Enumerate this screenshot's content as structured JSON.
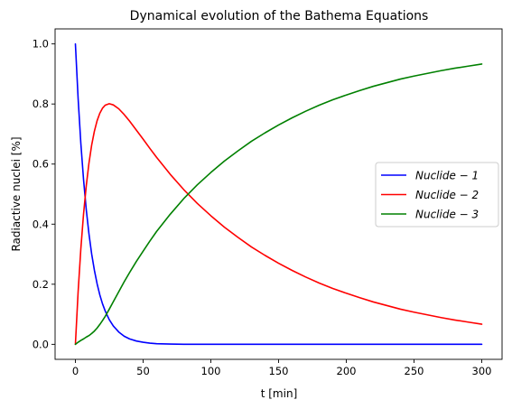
{
  "chart_data": {
    "type": "line",
    "title": "Dynamical evolution of the Bathema Equations",
    "xlabel": "t [min]",
    "ylabel": "Radiactive nuclei [%]",
    "xlim": [
      -15,
      315
    ],
    "ylim": [
      -0.05,
      1.05
    ],
    "xticks": [
      0,
      50,
      100,
      150,
      200,
      250,
      300
    ],
    "yticks": [
      0.0,
      0.2,
      0.4,
      0.6,
      0.8,
      1.0
    ],
    "xtick_labels": [
      "0",
      "50",
      "100",
      "150",
      "200",
      "250",
      "300"
    ],
    "ytick_labels": [
      "0.0",
      "0.2",
      "0.4",
      "0.6",
      "0.8",
      "1.0"
    ],
    "grid": false,
    "legend_position": "center-right",
    "x": [
      0,
      2,
      4,
      6,
      8,
      10,
      12,
      14,
      16,
      18,
      20,
      22,
      25,
      28,
      32,
      36,
      40,
      45,
      50,
      55,
      60,
      70,
      80,
      90,
      100,
      110,
      120,
      130,
      140,
      150,
      160,
      170,
      180,
      190,
      200,
      210,
      220,
      230,
      240,
      250,
      260,
      270,
      280,
      290,
      300
    ],
    "series": [
      {
        "name": "Nuclide-1",
        "color": "#0000ff",
        "values": [
          1.0,
          0.819,
          0.67,
          0.549,
          0.449,
          0.368,
          0.301,
          0.247,
          0.202,
          0.165,
          0.135,
          0.111,
          0.082,
          0.061,
          0.041,
          0.027,
          0.018,
          0.011,
          0.007,
          0.004,
          0.002,
          0.001,
          0.0,
          0.0,
          0.0,
          0.0,
          0.0,
          0.0,
          0.0,
          0.0,
          0.0,
          0.0,
          0.0,
          0.0,
          0.0,
          0.0,
          0.0,
          0.0,
          0.0,
          0.0,
          0.0,
          0.0,
          0.0,
          0.0,
          0.0
        ]
      },
      {
        "name": "Nuclide-2",
        "color": "#ff0000",
        "values": [
          0.0,
          0.174,
          0.317,
          0.433,
          0.527,
          0.603,
          0.663,
          0.709,
          0.744,
          0.769,
          0.786,
          0.796,
          0.801,
          0.797,
          0.784,
          0.765,
          0.743,
          0.713,
          0.683,
          0.652,
          0.622,
          0.566,
          0.515,
          0.469,
          0.428,
          0.39,
          0.356,
          0.324,
          0.296,
          0.27,
          0.246,
          0.224,
          0.204,
          0.186,
          0.17,
          0.155,
          0.141,
          0.129,
          0.117,
          0.107,
          0.098,
          0.089,
          0.081,
          0.074,
          0.067
        ]
      },
      {
        "name": "Nuclide-3",
        "color": "#008000",
        "values": [
          0.0,
          0.007,
          0.013,
          0.018,
          0.024,
          0.029,
          0.036,
          0.044,
          0.054,
          0.066,
          0.079,
          0.093,
          0.117,
          0.142,
          0.175,
          0.208,
          0.239,
          0.276,
          0.31,
          0.344,
          0.376,
          0.433,
          0.485,
          0.531,
          0.572,
          0.61,
          0.644,
          0.676,
          0.704,
          0.73,
          0.754,
          0.776,
          0.796,
          0.814,
          0.83,
          0.845,
          0.859,
          0.871,
          0.883,
          0.893,
          0.902,
          0.911,
          0.919,
          0.926,
          0.933
        ]
      }
    ],
    "legend": {
      "entries": [
        " Nuclide − 1",
        "Nuclide − 2",
        "Nuclide − 3"
      ]
    }
  }
}
